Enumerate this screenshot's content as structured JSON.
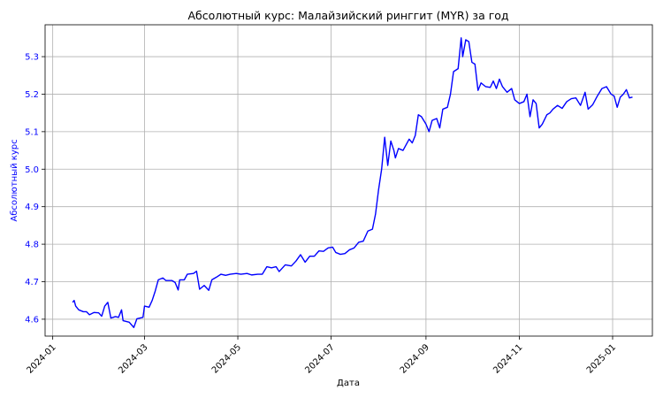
{
  "chart_data": {
    "type": "line",
    "title": "Абсолютный курс: Малайзийский ринггит (MYR) за год",
    "xlabel": "Дата",
    "ylabel": "Абсолютный курс",
    "ylim": [
      4.555,
      5.385
    ],
    "xlim": [
      "2023-12-27",
      "2025-01-27"
    ],
    "grid": true,
    "line_color": "#0000ff",
    "ylabel_color": "#0000ff",
    "y_ticks": [
      "4.6",
      "4.7",
      "4.8",
      "4.9",
      "5.0",
      "5.1",
      "5.2",
      "5.3"
    ],
    "x_ticks": [
      {
        "label": "2024-01",
        "date": "2024-01-01"
      },
      {
        "label": "2024-03",
        "date": "2024-03-01"
      },
      {
        "label": "2024-05",
        "date": "2024-05-01"
      },
      {
        "label": "2024-07",
        "date": "2024-07-01"
      },
      {
        "label": "2024-09",
        "date": "2024-09-01"
      },
      {
        "label": "2024-11",
        "date": "2024-11-01"
      },
      {
        "label": "2025-01",
        "date": "2025-01-01"
      }
    ],
    "series": [
      {
        "points": [
          [
            "2024-01-14",
            4.645
          ],
          [
            "2024-01-15",
            4.65
          ],
          [
            "2024-01-16",
            4.635
          ],
          [
            "2024-01-18",
            4.625
          ],
          [
            "2024-01-21",
            4.62
          ],
          [
            "2024-01-23",
            4.62
          ],
          [
            "2024-01-25",
            4.612
          ],
          [
            "2024-01-28",
            4.618
          ],
          [
            "2024-01-31",
            4.617
          ],
          [
            "2024-02-02",
            4.608
          ],
          [
            "2024-02-04",
            4.635
          ],
          [
            "2024-02-06",
            4.645
          ],
          [
            "2024-02-08",
            4.603
          ],
          [
            "2024-02-11",
            4.607
          ],
          [
            "2024-02-13",
            4.605
          ],
          [
            "2024-02-15",
            4.625
          ],
          [
            "2024-02-16",
            4.596
          ],
          [
            "2024-02-20",
            4.592
          ],
          [
            "2024-02-23",
            4.578
          ],
          [
            "2024-02-25",
            4.601
          ],
          [
            "2024-02-29",
            4.605
          ],
          [
            "2024-03-01",
            4.635
          ],
          [
            "2024-03-04",
            4.632
          ],
          [
            "2024-03-06",
            4.65
          ],
          [
            "2024-03-08",
            4.675
          ],
          [
            "2024-03-10",
            4.705
          ],
          [
            "2024-03-13",
            4.71
          ],
          [
            "2024-03-15",
            4.703
          ],
          [
            "2024-03-19",
            4.703
          ],
          [
            "2024-03-21",
            4.698
          ],
          [
            "2024-03-23",
            4.678
          ],
          [
            "2024-03-24",
            4.705
          ],
          [
            "2024-03-27",
            4.705
          ],
          [
            "2024-03-29",
            4.72
          ],
          [
            "2024-04-02",
            4.722
          ],
          [
            "2024-04-04",
            4.728
          ],
          [
            "2024-04-06",
            4.68
          ],
          [
            "2024-04-09",
            4.69
          ],
          [
            "2024-04-12",
            4.677
          ],
          [
            "2024-04-14",
            4.705
          ],
          [
            "2024-04-17",
            4.712
          ],
          [
            "2024-04-20",
            4.72
          ],
          [
            "2024-04-23",
            4.717
          ],
          [
            "2024-04-26",
            4.72
          ],
          [
            "2024-04-30",
            4.722
          ],
          [
            "2024-05-03",
            4.72
          ],
          [
            "2024-05-07",
            4.722
          ],
          [
            "2024-05-10",
            4.718
          ],
          [
            "2024-05-14",
            4.72
          ],
          [
            "2024-05-17",
            4.72
          ],
          [
            "2024-05-20",
            4.74
          ],
          [
            "2024-05-23",
            4.737
          ],
          [
            "2024-05-26",
            4.74
          ],
          [
            "2024-05-28",
            4.727
          ],
          [
            "2024-06-01",
            4.745
          ],
          [
            "2024-06-05",
            4.742
          ],
          [
            "2024-06-08",
            4.755
          ],
          [
            "2024-06-11",
            4.772
          ],
          [
            "2024-06-14",
            4.752
          ],
          [
            "2024-06-17",
            4.768
          ],
          [
            "2024-06-20",
            4.768
          ],
          [
            "2024-06-23",
            4.782
          ],
          [
            "2024-06-26",
            4.781
          ],
          [
            "2024-06-29",
            4.79
          ],
          [
            "2024-07-02",
            4.792
          ],
          [
            "2024-07-04",
            4.778
          ],
          [
            "2024-07-07",
            4.773
          ],
          [
            "2024-07-10",
            4.775
          ],
          [
            "2024-07-13",
            4.785
          ],
          [
            "2024-07-16",
            4.79
          ],
          [
            "2024-07-19",
            4.805
          ],
          [
            "2024-07-22",
            4.808
          ],
          [
            "2024-07-25",
            4.835
          ],
          [
            "2024-07-28",
            4.84
          ],
          [
            "2024-07-30",
            4.88
          ],
          [
            "2024-08-01",
            4.945
          ],
          [
            "2024-08-03",
            5.0
          ],
          [
            "2024-08-05",
            5.085
          ],
          [
            "2024-08-07",
            5.01
          ],
          [
            "2024-08-09",
            5.075
          ],
          [
            "2024-08-11",
            5.05
          ],
          [
            "2024-08-12",
            5.03
          ],
          [
            "2024-08-14",
            5.055
          ],
          [
            "2024-08-17",
            5.05
          ],
          [
            "2024-08-19",
            5.065
          ],
          [
            "2024-08-21",
            5.08
          ],
          [
            "2024-08-23",
            5.07
          ],
          [
            "2024-08-25",
            5.09
          ],
          [
            "2024-08-27",
            5.145
          ],
          [
            "2024-08-29",
            5.14
          ],
          [
            "2024-09-01",
            5.12
          ],
          [
            "2024-09-03",
            5.1
          ],
          [
            "2024-09-05",
            5.13
          ],
          [
            "2024-09-08",
            5.135
          ],
          [
            "2024-09-10",
            5.11
          ],
          [
            "2024-09-12",
            5.16
          ],
          [
            "2024-09-15",
            5.165
          ],
          [
            "2024-09-17",
            5.2
          ],
          [
            "2024-09-19",
            5.26
          ],
          [
            "2024-09-22",
            5.268
          ],
          [
            "2024-09-24",
            5.35
          ],
          [
            "2024-09-25",
            5.3
          ],
          [
            "2024-09-27",
            5.345
          ],
          [
            "2024-09-29",
            5.34
          ],
          [
            "2024-10-01",
            5.285
          ],
          [
            "2024-10-03",
            5.28
          ],
          [
            "2024-10-05",
            5.21
          ],
          [
            "2024-10-07",
            5.23
          ],
          [
            "2024-10-10",
            5.22
          ],
          [
            "2024-10-13",
            5.218
          ],
          [
            "2024-10-15",
            5.235
          ],
          [
            "2024-10-17",
            5.215
          ],
          [
            "2024-10-19",
            5.24
          ],
          [
            "2024-10-21",
            5.22
          ],
          [
            "2024-10-24",
            5.205
          ],
          [
            "2024-10-27",
            5.215
          ],
          [
            "2024-10-29",
            5.185
          ],
          [
            "2024-11-01",
            5.175
          ],
          [
            "2024-11-04",
            5.18
          ],
          [
            "2024-11-06",
            5.2
          ],
          [
            "2024-11-08",
            5.14
          ],
          [
            "2024-11-10",
            5.185
          ],
          [
            "2024-11-12",
            5.175
          ],
          [
            "2024-11-14",
            5.11
          ],
          [
            "2024-11-16",
            5.12
          ],
          [
            "2024-11-19",
            5.145
          ],
          [
            "2024-11-21",
            5.15
          ],
          [
            "2024-11-23",
            5.16
          ],
          [
            "2024-11-26",
            5.17
          ],
          [
            "2024-11-29",
            5.162
          ],
          [
            "2024-12-02",
            5.18
          ],
          [
            "2024-12-05",
            5.188
          ],
          [
            "2024-12-08",
            5.19
          ],
          [
            "2024-12-11",
            5.17
          ],
          [
            "2024-12-14",
            5.205
          ],
          [
            "2024-12-16",
            5.16
          ],
          [
            "2024-12-19",
            5.172
          ],
          [
            "2024-12-22",
            5.195
          ],
          [
            "2024-12-25",
            5.215
          ],
          [
            "2024-12-28",
            5.22
          ],
          [
            "2024-12-31",
            5.2
          ],
          [
            "2025-01-02",
            5.195
          ],
          [
            "2025-01-04",
            5.165
          ],
          [
            "2025-01-06",
            5.192
          ],
          [
            "2025-01-08",
            5.2
          ],
          [
            "2025-01-10",
            5.212
          ],
          [
            "2025-01-12",
            5.19
          ],
          [
            "2025-01-14",
            5.192
          ]
        ]
      }
    ]
  }
}
